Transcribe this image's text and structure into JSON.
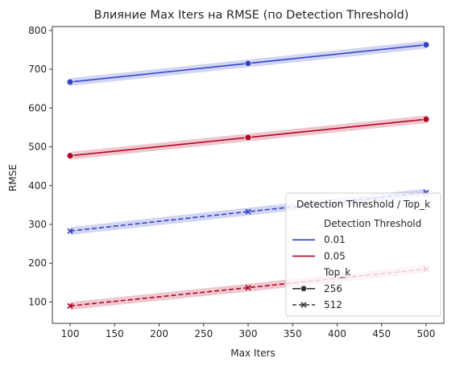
{
  "chart_data": {
    "type": "line",
    "title": "Влияние Max Iters на RMSE (по Detection Threshold)",
    "xlabel": "Max Iters",
    "ylabel": "RMSE",
    "x": [
      100,
      300,
      500
    ],
    "xlim": [
      80,
      520
    ],
    "ylim": [
      45,
      810
    ],
    "xticks": [
      100,
      150,
      200,
      250,
      300,
      350,
      400,
      450,
      500
    ],
    "yticks": [
      100,
      200,
      300,
      400,
      500,
      600,
      700,
      800
    ],
    "grid": false,
    "series": [
      {
        "threshold": "0.01",
        "top_k": "256",
        "color": "#3443c8",
        "dashed": false,
        "marker": "circle",
        "values": [
          667,
          715,
          763
        ],
        "band": 10
      },
      {
        "threshold": "0.05",
        "top_k": "256",
        "color": "#b40426",
        "dashed": false,
        "marker": "circle",
        "values": [
          477,
          524,
          571
        ],
        "band": 10
      },
      {
        "threshold": "0.01",
        "top_k": "512",
        "color": "#3443c8",
        "dashed": true,
        "marker": "x",
        "values": [
          283,
          333,
          382
        ],
        "band": 10
      },
      {
        "threshold": "0.05",
        "top_k": "512",
        "color": "#b40426",
        "dashed": true,
        "marker": "x",
        "values": [
          90,
          137,
          185
        ],
        "band": 10
      }
    ],
    "legend": {
      "title": "Detection Threshold / Top_k",
      "placement": "lower-right",
      "entries": [
        {
          "label": "Detection Threshold",
          "kind": "header"
        },
        {
          "label": "0.01",
          "kind": "line",
          "color": "#3443c8"
        },
        {
          "label": "0.05",
          "kind": "line",
          "color": "#b40426"
        },
        {
          "label": "Top_k",
          "kind": "header"
        },
        {
          "label": "256",
          "kind": "solid-marker"
        },
        {
          "label": "512",
          "kind": "dashed-marker"
        }
      ]
    }
  }
}
